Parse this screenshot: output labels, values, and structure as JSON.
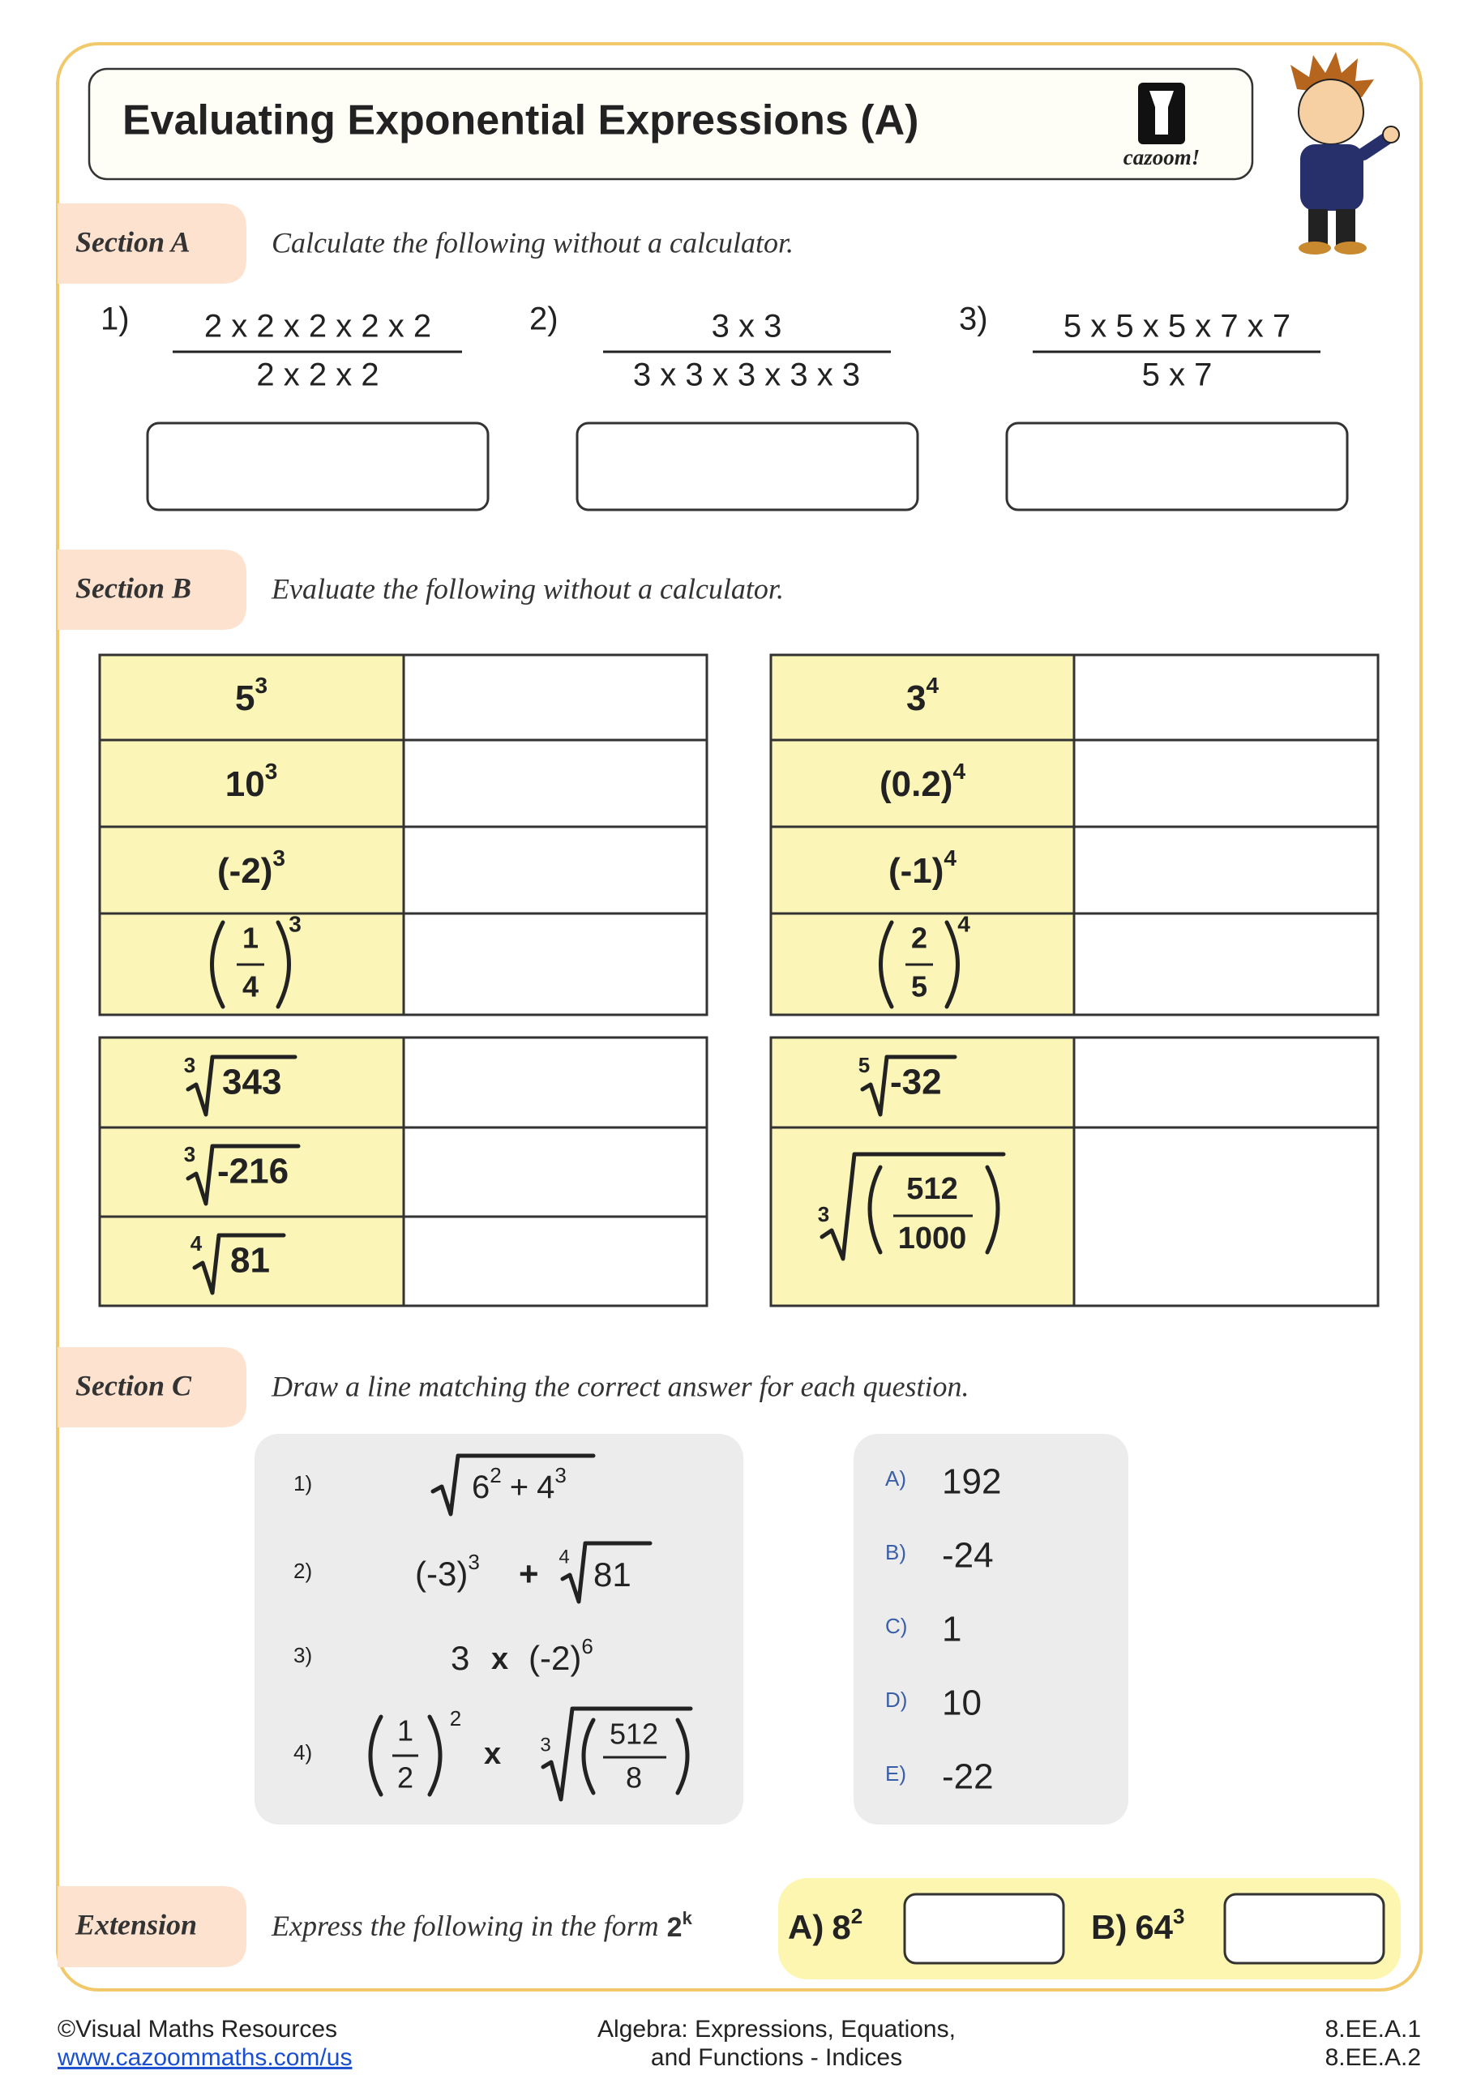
{
  "header": {
    "title": "Evaluating Exponential Expressions (A)",
    "logo_text": "cazoom!"
  },
  "section_a": {
    "label": "Section A",
    "instruction": "Calculate the following without a calculator.",
    "questions": [
      {
        "number": "1)",
        "numerator": "2 x 2 x 2 x 2 x 2",
        "denominator": "2 x 2 x 2"
      },
      {
        "number": "2)",
        "numerator": "3 x 3",
        "denominator": "3 x 3 x 3 x 3 x 3"
      },
      {
        "number": "3)",
        "numerator": "5 x 5 x 5 x 7 x 7",
        "denominator": "5 x 7"
      }
    ]
  },
  "section_b": {
    "label": "Section B",
    "instruction": "Evaluate the following without a calculator.",
    "powers_left": [
      {
        "base": "5",
        "exponent": "3"
      },
      {
        "base": "10",
        "exponent": "3"
      },
      {
        "base": "(-2)",
        "exponent": "3"
      },
      {
        "numerator": "1",
        "denominator": "4",
        "exponent": "3"
      }
    ],
    "powers_right": [
      {
        "base": "3",
        "exponent": "4"
      },
      {
        "base": "(0.2)",
        "exponent": "4"
      },
      {
        "base": "(-1)",
        "exponent": "4"
      },
      {
        "numerator": "2",
        "denominator": "5",
        "exponent": "4"
      }
    ],
    "roots_left": [
      {
        "index": "3",
        "radicand": "343"
      },
      {
        "index": "3",
        "radicand": "-216"
      },
      {
        "index": "4",
        "radicand": "81"
      }
    ],
    "roots_right": [
      {
        "index": "5",
        "radicand": "-32"
      },
      {
        "index": "3",
        "numerator": "512",
        "denominator": "1000"
      }
    ]
  },
  "section_c": {
    "label": "Section C",
    "instruction": "Draw a line matching the correct answer for each question.",
    "questions": [
      {
        "number": "1)",
        "base1": "6",
        "exp1": "2",
        "operator": "+",
        "base2": "4",
        "exp2": "3"
      },
      {
        "number": "2)",
        "base": "(-3)",
        "exp": "3",
        "operator": "+",
        "root_index": "4",
        "radicand": "81"
      },
      {
        "number": "3)",
        "factor": "3",
        "operator": "x",
        "base": "(-2)",
        "exp": "6"
      },
      {
        "number": "4)",
        "numerator": "1",
        "denominator": "2",
        "exp": "2",
        "operator": "x",
        "root_index": "3",
        "root_numerator": "512",
        "root_denominator": "8"
      }
    ],
    "answers": [
      {
        "letter": "A)",
        "value": "192"
      },
      {
        "letter": "B)",
        "value": "-24"
      },
      {
        "letter": "C)",
        "value": "1"
      },
      {
        "letter": "D)",
        "value": "10"
      },
      {
        "letter": "E)",
        "value": "-22"
      }
    ]
  },
  "extension": {
    "label": "Extension",
    "instruction": "Express the following in the form",
    "form_base": "2",
    "form_exp": "k",
    "items": [
      {
        "letter": "A)",
        "base": "8",
        "exp": "2"
      },
      {
        "letter": "B)",
        "base": "64",
        "exp": "3"
      }
    ]
  },
  "footer": {
    "copyright": "©Visual Maths Resources",
    "link": "www.cazoommaths.com/us",
    "topic_line1": "Algebra: Expressions, Equations,",
    "topic_line2": "and Functions - Indices",
    "standard1": "8.EE.A.1",
    "standard2": "8.EE.A.2"
  }
}
